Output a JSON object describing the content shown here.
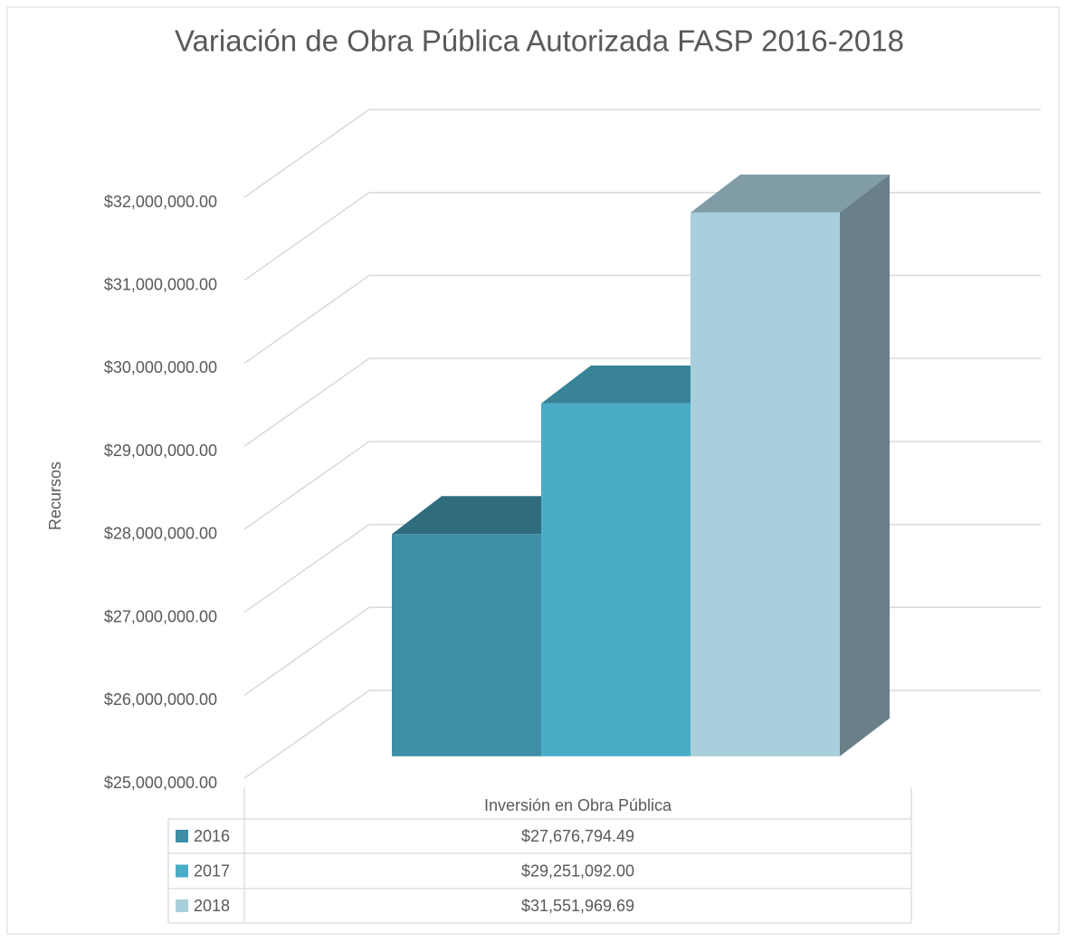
{
  "chart_data": {
    "type": "bar3d",
    "title": "Variación de Obra Pública Autorizada FASP 2016-2018",
    "y_label": "Recursos",
    "categories": [
      "Inversión en Obra Pública"
    ],
    "series": [
      {
        "name": "2016",
        "color": "#3e8ea6",
        "values": [
          27676794.49
        ],
        "value_labels": [
          "$27,676,794.49"
        ]
      },
      {
        "name": "2017",
        "color": "#4aadc8",
        "values": [
          29251092.0
        ],
        "value_labels": [
          "$29,251,092.00"
        ]
      },
      {
        "name": "2018",
        "color": "#a9cedc",
        "values": [
          31551969.69
        ],
        "value_labels": [
          "$31,551,969.69"
        ]
      }
    ],
    "ylim": [
      25000000,
      32000000
    ],
    "yticks": [
      {
        "value": 25000000,
        "label": "$25,000,000.00"
      },
      {
        "value": 26000000,
        "label": "$26,000,000.00"
      },
      {
        "value": 27000000,
        "label": "$27,000,000.00"
      },
      {
        "value": 28000000,
        "label": "$28,000,000.00"
      },
      {
        "value": 29000000,
        "label": "$29,000,000.00"
      },
      {
        "value": 30000000,
        "label": "$30,000,000.00"
      },
      {
        "value": 31000000,
        "label": "$31,000,000.00"
      },
      {
        "value": 32000000,
        "label": "$32,000,000.00"
      }
    ],
    "grid": true
  }
}
